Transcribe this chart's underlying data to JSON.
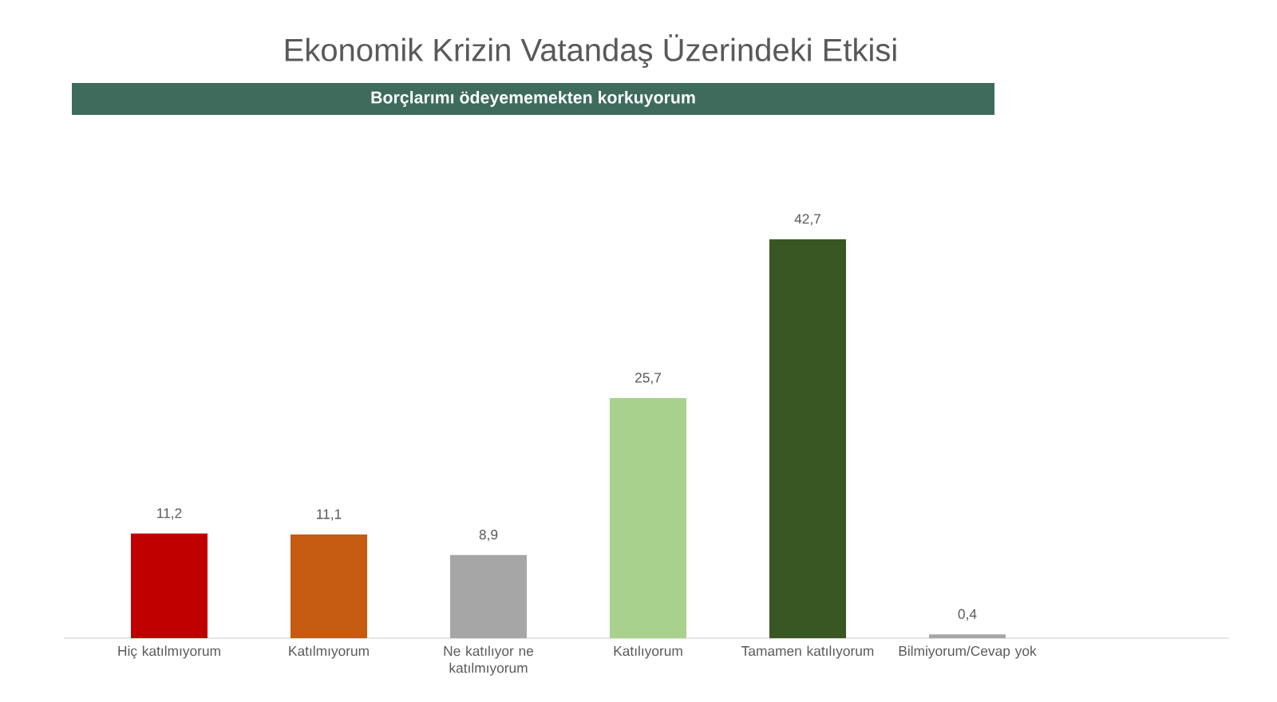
{
  "chart_data": {
    "type": "bar",
    "title": "Ekonomik Krizin Vatandaş Üzerindeki Etkisi",
    "subtitle": "Borçlarımı ödeyememekten korkuyorum",
    "categories": [
      "Hiç katılmıyorum",
      "Katılmıyorum",
      "Ne katılıyor ne katılmıyorum",
      "Katılıyorum",
      "Tamamen katılıyorum",
      "Bilmiyorum/Cevap yok"
    ],
    "values": [
      11.2,
      11.1,
      8.9,
      25.7,
      42.7,
      0.4
    ],
    "colors": [
      "#c00000",
      "#c55a11",
      "#a6a6a6",
      "#a9d18e",
      "#385723",
      "#a6a6a6"
    ],
    "value_labels": [
      "11,2",
      "11,1",
      "8,9",
      "25,7",
      "42,7",
      "0,4"
    ]
  }
}
